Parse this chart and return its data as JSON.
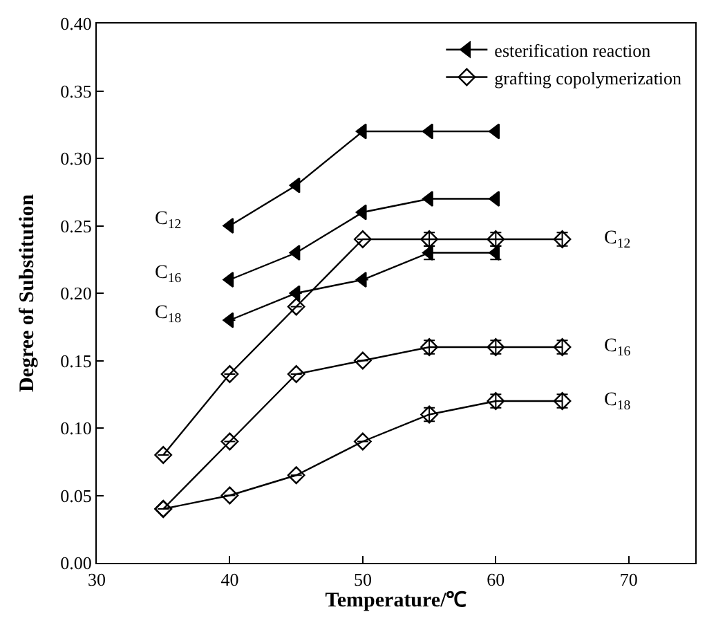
{
  "chart_data": {
    "type": "line",
    "xlabel": "Temperature/℃",
    "ylabel": "Degree of Substitution",
    "xlim": [
      30,
      75
    ],
    "xticks": [
      30,
      40,
      50,
      60,
      70
    ],
    "ylim": [
      0,
      0.4
    ],
    "yticks": [
      {
        "value": 0,
        "label": "0.00"
      },
      {
        "value": 0.05,
        "label": "0.05"
      },
      {
        "value": 0.1,
        "label": "0.10"
      },
      {
        "value": 0.15,
        "label": "0.15"
      },
      {
        "value": 0.2,
        "label": "0.20"
      },
      {
        "value": 0.25,
        "label": "0.25"
      },
      {
        "value": 0.3,
        "label": "0.30"
      },
      {
        "value": 0.35,
        "label": "0.35"
      },
      {
        "value": 0.4,
        "label": "0.40"
      }
    ],
    "legend": "top right",
    "line_style": "solid",
    "series": [
      {
        "name": "esterification reaction",
        "color": "#000000",
        "marker": "triangle",
        "x": [
          40,
          45,
          50,
          55,
          60
        ],
        "values": [
          0.25,
          0.28,
          0.32,
          0.32,
          0.32
        ]
      },
      {
        "color": "#000000",
        "marker": "triangle",
        "x": [
          40,
          45,
          50,
          55,
          60
        ],
        "values": [
          0.21,
          0.23,
          0.26,
          0.27,
          0.27
        ]
      },
      {
        "color": "#000000",
        "marker": "triangle",
        "x": [
          40,
          45,
          50,
          55,
          60
        ],
        "values": [
          0.18,
          0.2,
          0.21,
          0.23,
          0.23
        ],
        "errors": [
          null,
          null,
          null,
          0.005,
          0.005
        ]
      },
      {
        "name": "grafting copolymerization",
        "color": "#000000",
        "marker": "diamond",
        "x": [
          35,
          40,
          45,
          50,
          55,
          60,
          65
        ],
        "values": [
          0.08,
          0.14,
          0.19,
          0.24,
          0.24,
          0.24,
          0.24
        ],
        "errors": [
          null,
          null,
          null,
          null,
          0.005,
          0.005,
          0.005
        ]
      },
      {
        "color": "#000000",
        "marker": "diamond",
        "x": [
          35,
          40,
          45,
          50,
          55,
          60,
          65
        ],
        "values": [
          0.04,
          0.09,
          0.14,
          0.15,
          0.16,
          0.16,
          0.16
        ],
        "errors": [
          null,
          null,
          null,
          null,
          0.005,
          0.005,
          0.005
        ]
      },
      {
        "color": "#000000",
        "marker": "diamond",
        "x": [
          35,
          40,
          45,
          50,
          55,
          60,
          65
        ],
        "values": [
          0.04,
          0.05,
          0.065,
          0.09,
          0.11,
          0.12,
          0.12
        ],
        "errors": [
          null,
          null,
          null,
          null,
          0.005,
          0.005,
          0.005
        ]
      }
    ],
    "annotations": [
      "C$_{12}$",
      "C$_{16}$",
      "C$_{18}$",
      "C$_{12}$",
      "C$_{16}$",
      "C$_{18}$"
    ]
  }
}
